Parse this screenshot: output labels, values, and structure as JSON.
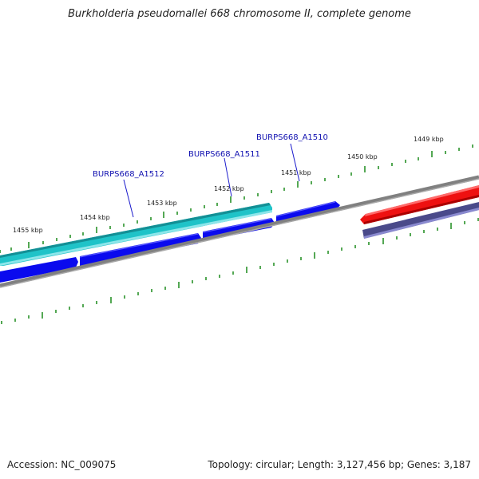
{
  "title": "Burkholderia pseudomallei 668 chromosome II, complete genome",
  "accession_label": "Accession: NC_009075",
  "summary_label": "Topology: circular; Length: 3,127,456 bp; Genes: 3,187",
  "kbp_labels": [
    "1455 kbp",
    "1454 kbp",
    "1453 kbp",
    "1452 kbp",
    "1451 kbp",
    "1450 kbp",
    "1449 kbp"
  ],
  "gene_labels": [
    "BURPS668_A1512",
    "BURPS668_A1511",
    "BURPS668_A1510"
  ],
  "colors": {
    "tick": "#1a8a1a",
    "backbone": "#808080",
    "cyan": "#1fc3c8",
    "blue": "#0a0aee",
    "red": "#ee1111",
    "slate": "#4a4a8a",
    "gene_label": "#1010b0"
  },
  "icons": []
}
